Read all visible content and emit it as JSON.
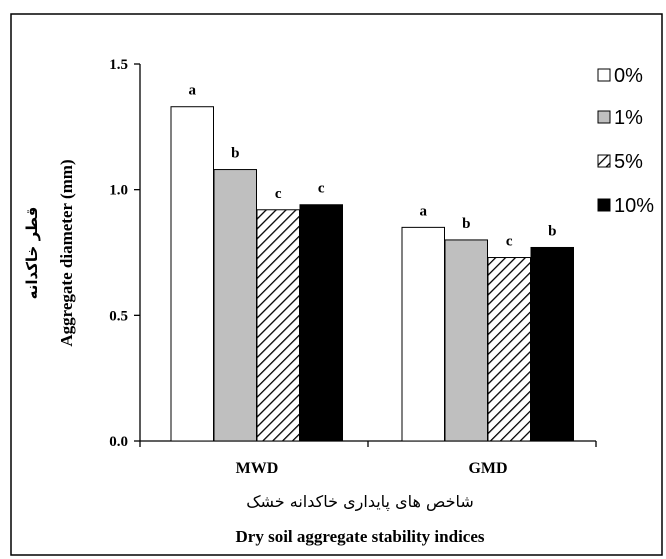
{
  "chart_data": {
    "type": "bar",
    "categories": [
      "MWD",
      "GMD"
    ],
    "series": [
      {
        "name": "0%",
        "values": [
          1.33,
          0.85
        ],
        "color": "#ffffff",
        "pattern": "none",
        "sig": [
          "a",
          "a"
        ]
      },
      {
        "name": "1%",
        "values": [
          1.08,
          0.8
        ],
        "color": "#bfbfbf",
        "pattern": "none",
        "sig": [
          "b",
          "b"
        ]
      },
      {
        "name": "5%",
        "values": [
          0.92,
          0.73
        ],
        "color": "#ffffff",
        "pattern": "diagonal-hatch",
        "sig": [
          "c",
          "c"
        ]
      },
      {
        "name": "10%",
        "values": [
          0.94,
          0.77
        ],
        "color": "#000000",
        "pattern": "none",
        "sig": [
          "c",
          "b"
        ]
      }
    ],
    "ylim": [
      0,
      1.5
    ],
    "yticks": [
      "0.0",
      "0.5",
      "1.0",
      "1.5"
    ],
    "ylabel_fa": "قطر خاکدانه",
    "ylabel_en": "Aggregate diameter (mm)",
    "xlabel_fa": "شاخص های پایداری خاکدانه خشک",
    "xlabel_en": "Dry soil aggregate stability indices",
    "legend_position": "right",
    "grid": false
  }
}
